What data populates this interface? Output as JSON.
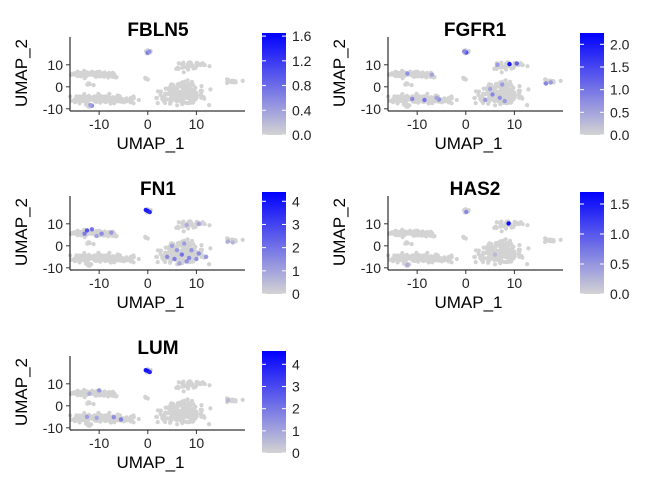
{
  "chart_data": [
    {
      "type": "scatter",
      "title": "FBLN5",
      "xlabel": "UMAP_1",
      "ylabel": "UMAP_2",
      "xlim": [
        -16,
        20
      ],
      "ylim": [
        -11,
        19
      ],
      "xticks": [
        {
          "v": -10,
          "label": "-10"
        },
        {
          "v": 0,
          "label": "0"
        },
        {
          "v": 10,
          "label": "10"
        }
      ],
      "yticks": [
        {
          "v": -10,
          "label": "-10"
        },
        {
          "v": 0,
          "label": "0"
        },
        {
          "v": 10,
          "label": "10"
        }
      ],
      "colorbar": {
        "min": 0,
        "max": 1.65,
        "low_color": "#d3d3d3",
        "high_color": "#0000ff",
        "ticks": [
          {
            "v": 0.0,
            "label": "0.0"
          },
          {
            "v": 0.4,
            "label": "0.4"
          },
          {
            "v": 0.8,
            "label": "0.8"
          },
          {
            "v": 1.2,
            "label": "1.2"
          },
          {
            "v": 1.6,
            "label": "1.6"
          }
        ]
      },
      "expression_points": [
        {
          "x": 0,
          "y": 15.5,
          "value": 0.7
        },
        {
          "x": 0.3,
          "y": 16.0,
          "value": 0.5
        },
        {
          "x": -11.5,
          "y": -8.6,
          "value": 0.6
        },
        {
          "x": -11.8,
          "y": -8.3,
          "value": 0.4
        }
      ]
    },
    {
      "type": "scatter",
      "title": "FGFR1",
      "xlabel": "UMAP_1",
      "ylabel": "UMAP_2",
      "xlim": [
        -16,
        20
      ],
      "ylim": [
        -11,
        19
      ],
      "xticks": [
        {
          "v": -10,
          "label": "-10"
        },
        {
          "v": 0,
          "label": "0"
        },
        {
          "v": 10,
          "label": "10"
        }
      ],
      "yticks": [
        {
          "v": -10,
          "label": "-10"
        },
        {
          "v": 0,
          "label": "0"
        },
        {
          "v": 10,
          "label": "10"
        }
      ],
      "colorbar": {
        "min": 0,
        "max": 2.25,
        "low_color": "#d3d3d3",
        "high_color": "#0000ff",
        "ticks": [
          {
            "v": 0.0,
            "label": "0.0"
          },
          {
            "v": 0.5,
            "label": "0.5"
          },
          {
            "v": 1.0,
            "label": "1.0"
          },
          {
            "v": 1.5,
            "label": "1.5"
          },
          {
            "v": 2.0,
            "label": "2.0"
          }
        ]
      },
      "expression_points": [
        {
          "x": 0.1,
          "y": 15.6,
          "value": 1.4
        },
        {
          "x": -0.3,
          "y": 16.1,
          "value": 0.8
        },
        {
          "x": -8.5,
          "y": -6.0,
          "value": 1.0
        },
        {
          "x": -11.0,
          "y": -5.5,
          "value": 0.8
        },
        {
          "x": -5.5,
          "y": -5.8,
          "value": 0.7
        },
        {
          "x": -6.0,
          "y": -5.0,
          "value": 0.5
        },
        {
          "x": 4.0,
          "y": -6.0,
          "value": 0.6
        },
        {
          "x": 5.5,
          "y": -3.5,
          "value": 0.8
        },
        {
          "x": 7.0,
          "y": -5.0,
          "value": 0.7
        },
        {
          "x": 8.0,
          "y": -6.5,
          "value": 0.6
        },
        {
          "x": 5.0,
          "y": -1.0,
          "value": 0.5
        },
        {
          "x": 7.5,
          "y": 1.0,
          "value": 0.6
        },
        {
          "x": 9.0,
          "y": 10.3,
          "value": 2.0
        },
        {
          "x": 10.5,
          "y": 10.6,
          "value": 1.2
        },
        {
          "x": 6.5,
          "y": 10.0,
          "value": 0.6
        },
        {
          "x": 16.5,
          "y": 1.5,
          "value": 0.8
        },
        {
          "x": 17.5,
          "y": 2.0,
          "value": 0.6
        },
        {
          "x": -12.0,
          "y": 6.0,
          "value": 0.7
        },
        {
          "x": -7.0,
          "y": 5.5,
          "value": 0.5
        }
      ]
    },
    {
      "type": "scatter",
      "title": "FN1",
      "xlabel": "UMAP_1",
      "ylabel": "UMAP_2",
      "xlim": [
        -16,
        20
      ],
      "ylim": [
        -11,
        19
      ],
      "xticks": [
        {
          "v": -10,
          "label": "-10"
        },
        {
          "v": 0,
          "label": "0"
        },
        {
          "v": 10,
          "label": "10"
        }
      ],
      "yticks": [
        {
          "v": -10,
          "label": "-10"
        },
        {
          "v": 0,
          "label": "0"
        },
        {
          "v": 10,
          "label": "10"
        }
      ],
      "colorbar": {
        "min": 0,
        "max": 4.4,
        "low_color": "#d3d3d3",
        "high_color": "#0000ff",
        "ticks": [
          {
            "v": 0,
            "label": "0"
          },
          {
            "v": 1,
            "label": "1"
          },
          {
            "v": 2,
            "label": "2"
          },
          {
            "v": 3,
            "label": "3"
          },
          {
            "v": 4,
            "label": "4"
          }
        ]
      },
      "expression_points": [
        {
          "x": 0.0,
          "y": 15.8,
          "value": 4.2
        },
        {
          "x": -0.4,
          "y": 16.3,
          "value": 3.8
        },
        {
          "x": 0.4,
          "y": 15.3,
          "value": 3.5
        },
        {
          "x": -12.5,
          "y": 7.0,
          "value": 2.6
        },
        {
          "x": -11.5,
          "y": 7.5,
          "value": 2.0
        },
        {
          "x": -13.0,
          "y": 5.5,
          "value": 1.8
        },
        {
          "x": -9.5,
          "y": 5.5,
          "value": 1.5
        },
        {
          "x": -7.5,
          "y": 6.0,
          "value": 1.2
        },
        {
          "x": -10.5,
          "y": 4.5,
          "value": 1.0
        },
        {
          "x": 4.0,
          "y": -5.0,
          "value": 1.5
        },
        {
          "x": 5.5,
          "y": -6.0,
          "value": 1.8
        },
        {
          "x": 7.0,
          "y": -4.0,
          "value": 2.0
        },
        {
          "x": 8.5,
          "y": -5.5,
          "value": 1.6
        },
        {
          "x": 10.0,
          "y": -6.0,
          "value": 1.4
        },
        {
          "x": 6.0,
          "y": -2.0,
          "value": 1.2
        },
        {
          "x": 9.0,
          "y": -2.0,
          "value": 1.3
        },
        {
          "x": 5.0,
          "y": 0.0,
          "value": 1.0
        },
        {
          "x": 7.5,
          "y": 1.0,
          "value": 1.1
        },
        {
          "x": 10.5,
          "y": -3.5,
          "value": 1.5
        },
        {
          "x": 12.0,
          "y": -5.0,
          "value": 1.2
        },
        {
          "x": 8.0,
          "y": -7.0,
          "value": 1.4
        },
        {
          "x": 6.5,
          "y": -8.0,
          "value": 1.0
        },
        {
          "x": 8.0,
          "y": 9.5,
          "value": 0.8
        },
        {
          "x": 10.5,
          "y": 10.0,
          "value": 1.0
        },
        {
          "x": 16.5,
          "y": 2.0,
          "value": 0.8
        },
        {
          "x": 17.5,
          "y": 1.5,
          "value": 0.6
        }
      ]
    },
    {
      "type": "scatter",
      "title": "HAS2",
      "xlabel": "UMAP_1",
      "ylabel": "UMAP_2",
      "xlim": [
        -16,
        20
      ],
      "ylim": [
        -11,
        19
      ],
      "xticks": [
        {
          "v": -10,
          "label": "-10"
        },
        {
          "v": 0,
          "label": "0"
        },
        {
          "v": 10,
          "label": "10"
        }
      ],
      "yticks": [
        {
          "v": -10,
          "label": "-10"
        },
        {
          "v": 0,
          "label": "0"
        },
        {
          "v": 10,
          "label": "10"
        }
      ],
      "colorbar": {
        "min": 0,
        "max": 1.7,
        "low_color": "#d3d3d3",
        "high_color": "#0000ff",
        "ticks": [
          {
            "v": 0.0,
            "label": "0.0"
          },
          {
            "v": 0.5,
            "label": "0.5"
          },
          {
            "v": 1.0,
            "label": "1.0"
          },
          {
            "v": 1.5,
            "label": "1.5"
          }
        ]
      },
      "expression_points": [
        {
          "x": 0.1,
          "y": 15.4,
          "value": 0.6
        },
        {
          "x": 8.8,
          "y": 10.2,
          "value": 1.6
        },
        {
          "x": -12.0,
          "y": -8.7,
          "value": 0.3
        },
        {
          "x": 6.0,
          "y": -4.0,
          "value": 0.2
        }
      ]
    },
    {
      "type": "scatter",
      "title": "LUM",
      "xlabel": "UMAP_1",
      "ylabel": "UMAP_2",
      "xlim": [
        -16,
        20
      ],
      "ylim": [
        -11,
        19
      ],
      "xticks": [
        {
          "v": -10,
          "label": "-10"
        },
        {
          "v": 0,
          "label": "0"
        },
        {
          "v": 10,
          "label": "10"
        }
      ],
      "yticks": [
        {
          "v": -10,
          "label": "-10"
        },
        {
          "v": 0,
          "label": "0"
        },
        {
          "v": 10,
          "label": "10"
        }
      ],
      "colorbar": {
        "min": 0,
        "max": 4.6,
        "low_color": "#d3d3d3",
        "high_color": "#0000ff",
        "ticks": [
          {
            "v": 0,
            "label": "0"
          },
          {
            "v": 1,
            "label": "1"
          },
          {
            "v": 2,
            "label": "2"
          },
          {
            "v": 3,
            "label": "3"
          },
          {
            "v": 4,
            "label": "4"
          }
        ]
      },
      "expression_points": [
        {
          "x": 0.0,
          "y": 15.8,
          "value": 4.5
        },
        {
          "x": -0.4,
          "y": 16.2,
          "value": 4.2
        },
        {
          "x": 0.4,
          "y": 15.3,
          "value": 3.8
        },
        {
          "x": -10.0,
          "y": 7.0,
          "value": 1.4
        },
        {
          "x": -12.0,
          "y": 5.5,
          "value": 0.8
        },
        {
          "x": -12.5,
          "y": -5.0,
          "value": 1.2
        },
        {
          "x": -10.5,
          "y": -5.5,
          "value": 1.0
        },
        {
          "x": -7.0,
          "y": -5.2,
          "value": 1.5
        },
        {
          "x": -5.5,
          "y": -6.2,
          "value": 1.8
        },
        {
          "x": 16.5,
          "y": 2.5,
          "value": 0.6
        }
      ]
    }
  ]
}
